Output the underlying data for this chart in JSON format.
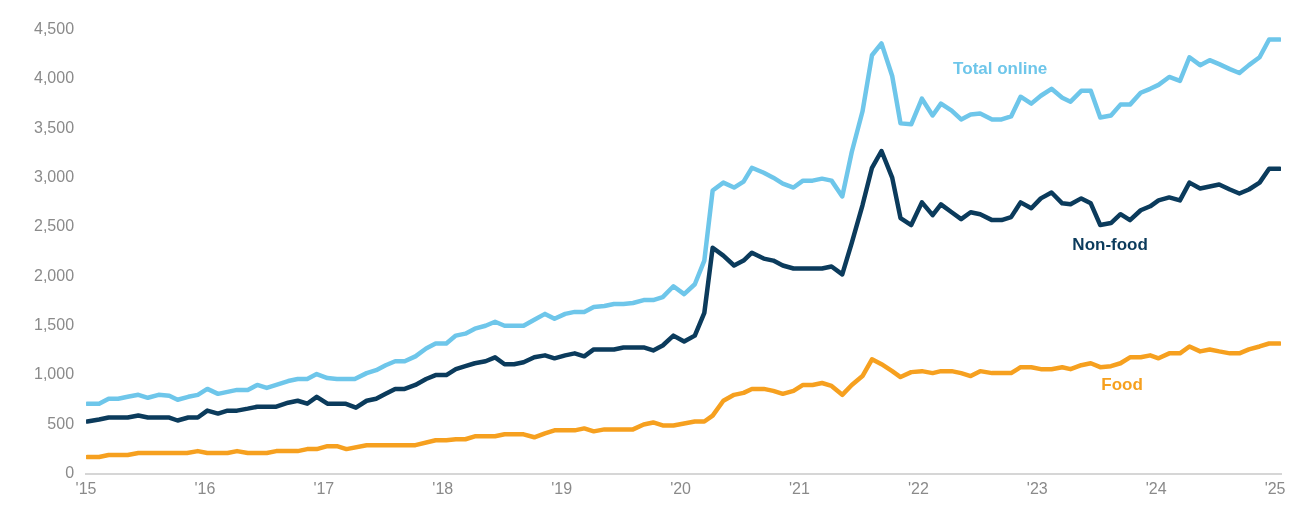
{
  "chart_data": {
    "type": "line",
    "legend": false,
    "grid": false,
    "marker": "none",
    "line_style": "solid",
    "xlim": [
      2015,
      2025.05
    ],
    "xticks": [
      {
        "value": 2015,
        "label": "'15"
      },
      {
        "value": 2016,
        "label": "'16"
      },
      {
        "value": 2017,
        "label": "'17"
      },
      {
        "value": 2018,
        "label": "'18"
      },
      {
        "value": 2019,
        "label": "'19"
      },
      {
        "value": 2020,
        "label": "'20"
      },
      {
        "value": 2021,
        "label": "'21"
      },
      {
        "value": 2022,
        "label": "'22"
      },
      {
        "value": 2023,
        "label": "'23"
      },
      {
        "value": 2024,
        "label": "'24"
      },
      {
        "value": 2025,
        "label": "'25"
      }
    ],
    "ylim": [
      0,
      4500
    ],
    "yticks": [
      0,
      500,
      {
        "value": 1000,
        "label": "1,000"
      },
      {
        "value": 1500,
        "label": "1,500"
      },
      {
        "value": 2000,
        "label": "2,000"
      },
      {
        "value": 2500,
        "label": "2,500"
      },
      {
        "value": 3000,
        "label": "3,000"
      },
      {
        "value": 3500,
        "label": "3,500"
      },
      {
        "value": 4000,
        "label": "4,000"
      },
      {
        "value": 4500,
        "label": "4,500"
      }
    ],
    "series": [
      {
        "name": "Total online",
        "color": "#6ec6ea",
        "x": [
          2015.01,
          2015.11,
          2015.19,
          2015.27,
          2015.35,
          2015.44,
          2015.52,
          2015.61,
          2015.7,
          2015.77,
          2015.86,
          2015.94,
          2016.02,
          2016.11,
          2016.19,
          2016.27,
          2016.36,
          2016.44,
          2016.52,
          2016.6,
          2016.7,
          2016.78,
          2016.86,
          2016.94,
          2017.03,
          2017.11,
          2017.26,
          2017.36,
          2017.44,
          2017.52,
          2017.6,
          2017.68,
          2017.77,
          2017.86,
          2017.94,
          2018.03,
          2018.11,
          2018.19,
          2018.27,
          2018.36,
          2018.44,
          2018.52,
          2018.6,
          2018.68,
          2018.77,
          2018.86,
          2018.94,
          2019.03,
          2019.11,
          2019.19,
          2019.27,
          2019.36,
          2019.44,
          2019.52,
          2019.6,
          2019.69,
          2019.77,
          2019.85,
          2019.94,
          2020.03,
          2020.12,
          2020.2,
          2020.27,
          2020.36,
          2020.45,
          2020.53,
          2020.6,
          2020.7,
          2020.78,
          2020.86,
          2020.95,
          2021.03,
          2021.11,
          2021.19,
          2021.27,
          2021.36,
          2021.44,
          2021.53,
          2021.61,
          2021.69,
          2021.78,
          2021.85,
          2021.94,
          2022.03,
          2022.12,
          2022.19,
          2022.28,
          2022.36,
          2022.44,
          2022.52,
          2022.62,
          2022.7,
          2022.78,
          2022.86,
          2022.95,
          2023.03,
          2023.12,
          2023.21,
          2023.28,
          2023.37,
          2023.45,
          2023.53,
          2023.62,
          2023.7,
          2023.78,
          2023.87,
          2023.95,
          2024.02,
          2024.11,
          2024.2,
          2024.28,
          2024.37,
          2024.45,
          2024.53,
          2024.62,
          2024.7,
          2024.78,
          2024.87,
          2024.95,
          2025.04
        ],
        "values": [
          710,
          710,
          760,
          760,
          780,
          800,
          770,
          800,
          790,
          750,
          780,
          800,
          860,
          810,
          830,
          850,
          850,
          900,
          870,
          900,
          940,
          960,
          960,
          1010,
          970,
          960,
          960,
          1020,
          1050,
          1100,
          1140,
          1140,
          1190,
          1270,
          1320,
          1320,
          1400,
          1420,
          1470,
          1500,
          1540,
          1500,
          1500,
          1500,
          1560,
          1620,
          1570,
          1620,
          1640,
          1640,
          1690,
          1700,
          1720,
          1720,
          1730,
          1760,
          1760,
          1790,
          1900,
          1820,
          1920,
          2160,
          2870,
          2950,
          2900,
          2960,
          3100,
          3050,
          3000,
          2940,
          2900,
          2970,
          2970,
          2990,
          2970,
          2810,
          3260,
          3670,
          4240,
          4360,
          4030,
          3550,
          3540,
          3800,
          3630,
          3750,
          3680,
          3590,
          3640,
          3650,
          3590,
          3590,
          3620,
          3820,
          3750,
          3830,
          3900,
          3810,
          3770,
          3880,
          3880,
          3610,
          3630,
          3740,
          3740,
          3860,
          3900,
          3940,
          4020,
          3980,
          4220,
          4140,
          4190,
          4150,
          4100,
          4060,
          4140,
          4220,
          4400,
          4400
        ]
      },
      {
        "name": "Non-food",
        "color": "#0b3b5c",
        "x": [
          2015.01,
          2015.11,
          2015.19,
          2015.35,
          2015.44,
          2015.52,
          2015.7,
          2015.77,
          2015.86,
          2015.94,
          2016.02,
          2016.11,
          2016.19,
          2016.27,
          2016.36,
          2016.44,
          2016.6,
          2016.7,
          2016.78,
          2016.86,
          2016.94,
          2017.03,
          2017.18,
          2017.27,
          2017.36,
          2017.44,
          2017.52,
          2017.6,
          2017.68,
          2017.77,
          2017.86,
          2017.94,
          2018.03,
          2018.11,
          2018.19,
          2018.27,
          2018.36,
          2018.44,
          2018.52,
          2018.6,
          2018.68,
          2018.77,
          2018.86,
          2018.94,
          2019.03,
          2019.11,
          2019.19,
          2019.27,
          2019.36,
          2019.44,
          2019.52,
          2019.69,
          2019.77,
          2019.85,
          2019.94,
          2020.03,
          2020.12,
          2020.2,
          2020.27,
          2020.36,
          2020.45,
          2020.53,
          2020.6,
          2020.7,
          2020.78,
          2020.86,
          2020.95,
          2021.19,
          2021.27,
          2021.36,
          2021.44,
          2021.53,
          2021.61,
          2021.69,
          2021.78,
          2021.85,
          2021.94,
          2022.03,
          2022.12,
          2022.19,
          2022.28,
          2022.36,
          2022.44,
          2022.52,
          2022.62,
          2022.7,
          2022.78,
          2022.86,
          2022.95,
          2023.03,
          2023.12,
          2023.21,
          2023.28,
          2023.37,
          2023.45,
          2023.53,
          2023.62,
          2023.7,
          2023.78,
          2023.87,
          2023.95,
          2024.02,
          2024.11,
          2024.2,
          2024.28,
          2024.37,
          2024.45,
          2024.53,
          2024.62,
          2024.7,
          2024.78,
          2024.87,
          2024.95,
          2025.04
        ],
        "values": [
          530,
          550,
          570,
          570,
          590,
          570,
          570,
          540,
          570,
          570,
          640,
          610,
          640,
          640,
          660,
          680,
          680,
          720,
          740,
          710,
          780,
          710,
          710,
          670,
          740,
          760,
          810,
          860,
          860,
          900,
          960,
          1000,
          1000,
          1060,
          1090,
          1120,
          1140,
          1180,
          1110,
          1110,
          1130,
          1180,
          1200,
          1170,
          1200,
          1220,
          1190,
          1260,
          1260,
          1260,
          1280,
          1280,
          1250,
          1300,
          1400,
          1340,
          1400,
          1630,
          2290,
          2210,
          2110,
          2160,
          2240,
          2180,
          2160,
          2110,
          2080,
          2080,
          2100,
          2020,
          2340,
          2720,
          3100,
          3270,
          3000,
          2590,
          2520,
          2750,
          2620,
          2730,
          2650,
          2580,
          2650,
          2630,
          2570,
          2570,
          2600,
          2750,
          2690,
          2790,
          2850,
          2740,
          2730,
          2790,
          2740,
          2520,
          2540,
          2630,
          2570,
          2670,
          2710,
          2770,
          2800,
          2770,
          2950,
          2890,
          2910,
          2930,
          2880,
          2840,
          2880,
          2950,
          3090,
          3090
        ]
      },
      {
        "name": "Food",
        "color": "#f6a01f",
        "x": [
          2015.01,
          2015.11,
          2015.19,
          2015.35,
          2015.44,
          2015.85,
          2015.94,
          2016.02,
          2016.19,
          2016.27,
          2016.36,
          2016.52,
          2016.6,
          2016.78,
          2016.86,
          2016.94,
          2017.03,
          2017.11,
          2017.19,
          2017.36,
          2017.77,
          2017.94,
          2018.03,
          2018.11,
          2018.19,
          2018.27,
          2018.44,
          2018.52,
          2018.68,
          2018.77,
          2018.86,
          2018.94,
          2019.11,
          2019.19,
          2019.27,
          2019.36,
          2019.6,
          2019.69,
          2019.77,
          2019.85,
          2019.94,
          2020.03,
          2020.12,
          2020.2,
          2020.27,
          2020.36,
          2020.45,
          2020.53,
          2020.6,
          2020.7,
          2020.78,
          2020.86,
          2020.95,
          2021.03,
          2021.11,
          2021.19,
          2021.27,
          2021.36,
          2021.44,
          2021.53,
          2021.61,
          2021.69,
          2021.78,
          2021.85,
          2021.94,
          2022.03,
          2022.12,
          2022.19,
          2022.28,
          2022.36,
          2022.44,
          2022.52,
          2022.62,
          2022.78,
          2022.86,
          2022.95,
          2023.03,
          2023.12,
          2023.21,
          2023.28,
          2023.37,
          2023.45,
          2023.53,
          2023.62,
          2023.7,
          2023.78,
          2023.87,
          2023.95,
          2024.02,
          2024.11,
          2024.2,
          2024.28,
          2024.37,
          2024.45,
          2024.53,
          2024.62,
          2024.7,
          2024.78,
          2024.87,
          2024.95,
          2025.04
        ],
        "values": [
          170,
          170,
          190,
          190,
          210,
          210,
          230,
          210,
          210,
          230,
          210,
          210,
          230,
          230,
          250,
          250,
          280,
          280,
          250,
          290,
          290,
          340,
          340,
          350,
          350,
          380,
          380,
          400,
          400,
          370,
          410,
          440,
          440,
          460,
          430,
          450,
          450,
          500,
          520,
          490,
          490,
          510,
          530,
          530,
          590,
          740,
          800,
          820,
          860,
          860,
          840,
          810,
          840,
          900,
          900,
          920,
          890,
          800,
          900,
          990,
          1160,
          1110,
          1040,
          980,
          1030,
          1040,
          1020,
          1040,
          1040,
          1020,
          990,
          1040,
          1020,
          1020,
          1080,
          1080,
          1060,
          1060,
          1080,
          1060,
          1100,
          1120,
          1080,
          1090,
          1120,
          1180,
          1180,
          1200,
          1170,
          1220,
          1220,
          1290,
          1240,
          1260,
          1240,
          1220,
          1220,
          1260,
          1290,
          1320,
          1320
        ]
      }
    ]
  }
}
